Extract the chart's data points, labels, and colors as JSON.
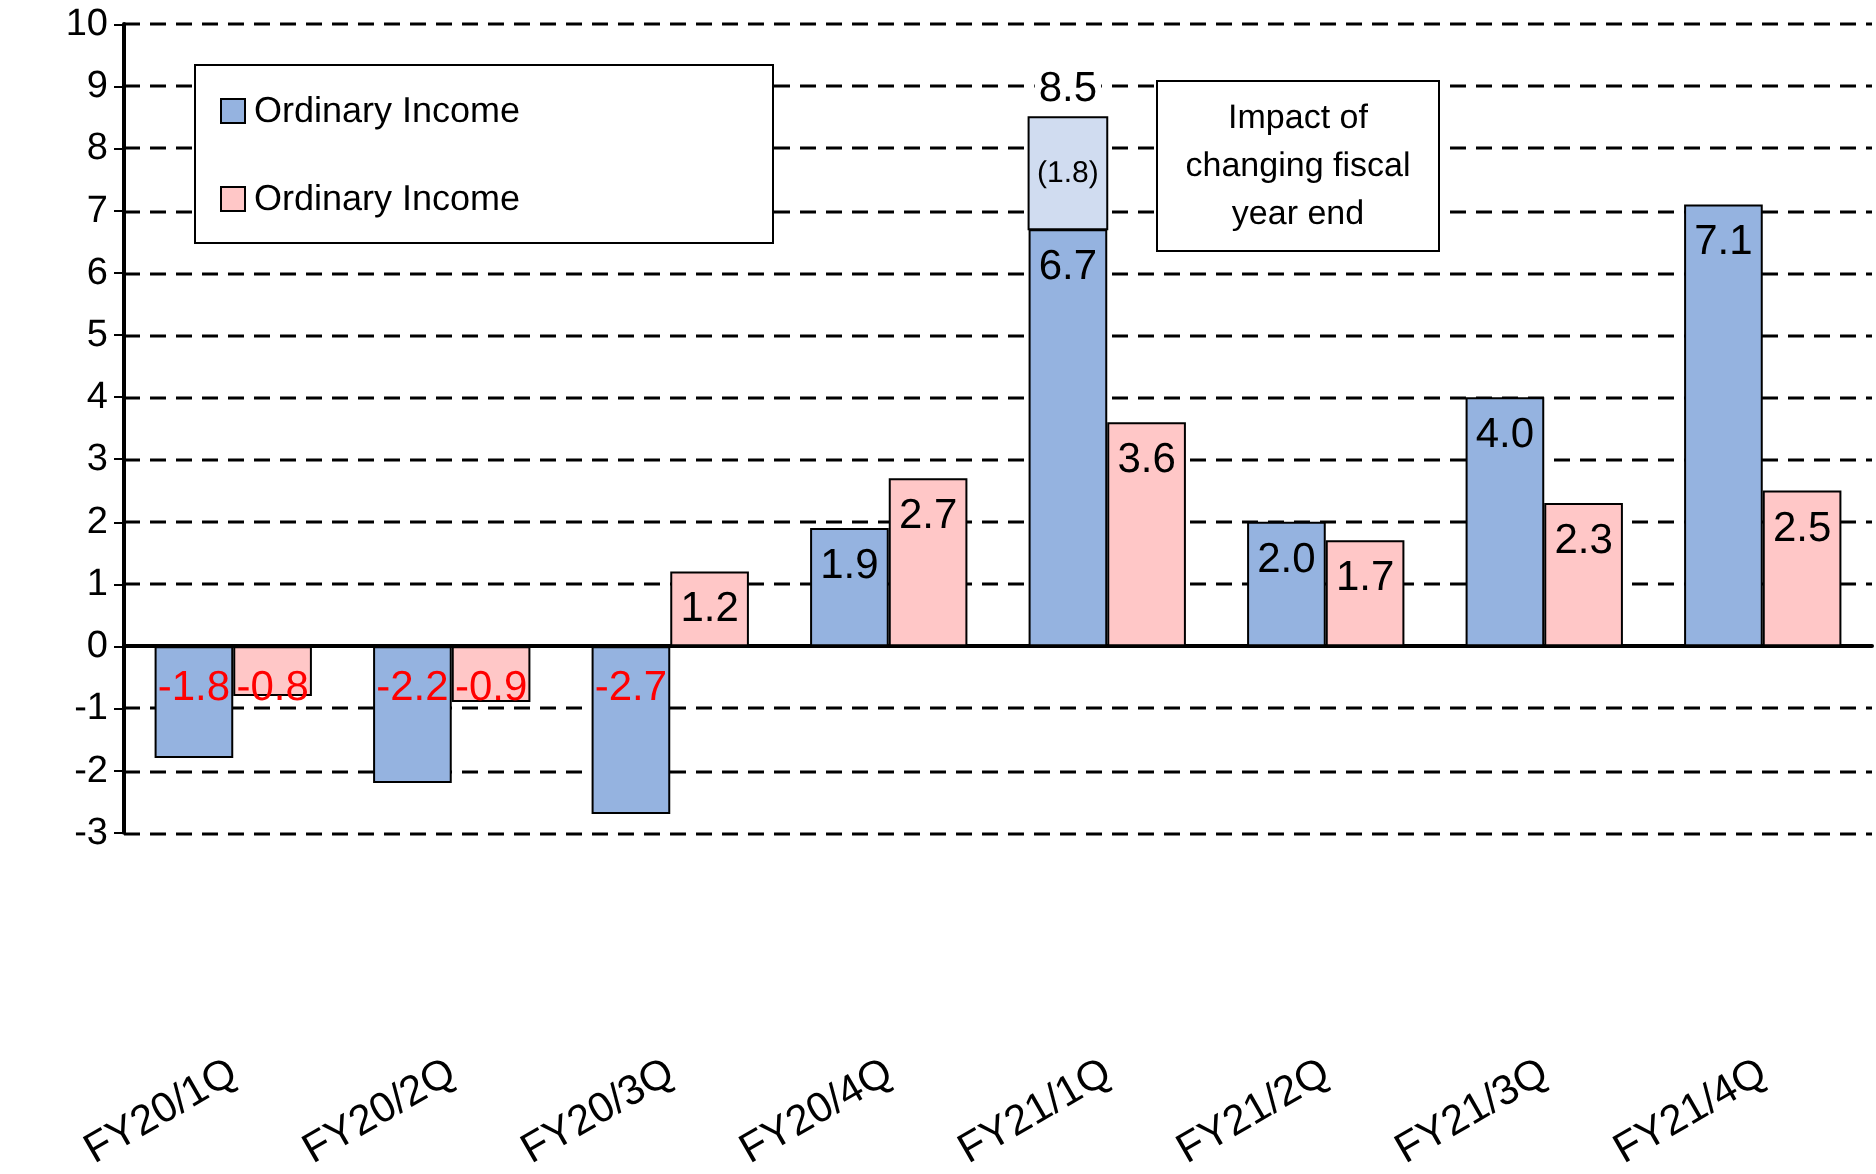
{
  "chart_data": {
    "type": "bar",
    "categories": [
      "FY20/1Q",
      "FY20/2Q",
      "FY20/3Q",
      "FY20/4Q",
      "FY21/1Q",
      "FY21/2Q",
      "FY21/3Q",
      "FY21/4Q"
    ],
    "series": [
      {
        "name": "Ordinary Income",
        "color": "#95b3e0",
        "values": [
          -1.8,
          -2.2,
          -2.7,
          1.9,
          6.7,
          2.0,
          4.0,
          7.1
        ],
        "value_labels": [
          "-1.8",
          "-2.2",
          "-2.7",
          "1.9",
          "6.7",
          "2.0",
          "4.0",
          "7.1"
        ]
      },
      {
        "name": "Ordinary Income",
        "color": "#ffc7c7",
        "values": [
          -0.8,
          -0.9,
          1.2,
          2.7,
          3.6,
          1.7,
          2.3,
          2.5
        ],
        "value_labels": [
          "-0.8",
          "-0.9",
          "1.2",
          "2.7",
          "3.6",
          "1.7",
          "2.3",
          "2.5"
        ]
      },
      {
        "color": "#d0dcf0",
        "values": [
          null,
          null,
          null,
          null,
          1.8,
          null,
          null,
          null
        ],
        "base": [
          null,
          null,
          null,
          null,
          6.7,
          null,
          null,
          null
        ],
        "value_labels": [
          null,
          null,
          null,
          null,
          "(1.8)",
          null,
          null,
          null
        ]
      }
    ],
    "annotations": [
      {
        "text": "8.5",
        "x": "FY21/1Q",
        "y": 8.5
      },
      "Impact of changing fiscal year end"
    ],
    "ylim": [
      -3,
      10
    ],
    "yticks": [
      -3,
      -2,
      -1,
      0,
      1,
      2,
      3,
      4,
      5,
      6,
      7,
      8,
      9,
      10
    ],
    "grid": "y",
    "legend": "top left"
  }
}
